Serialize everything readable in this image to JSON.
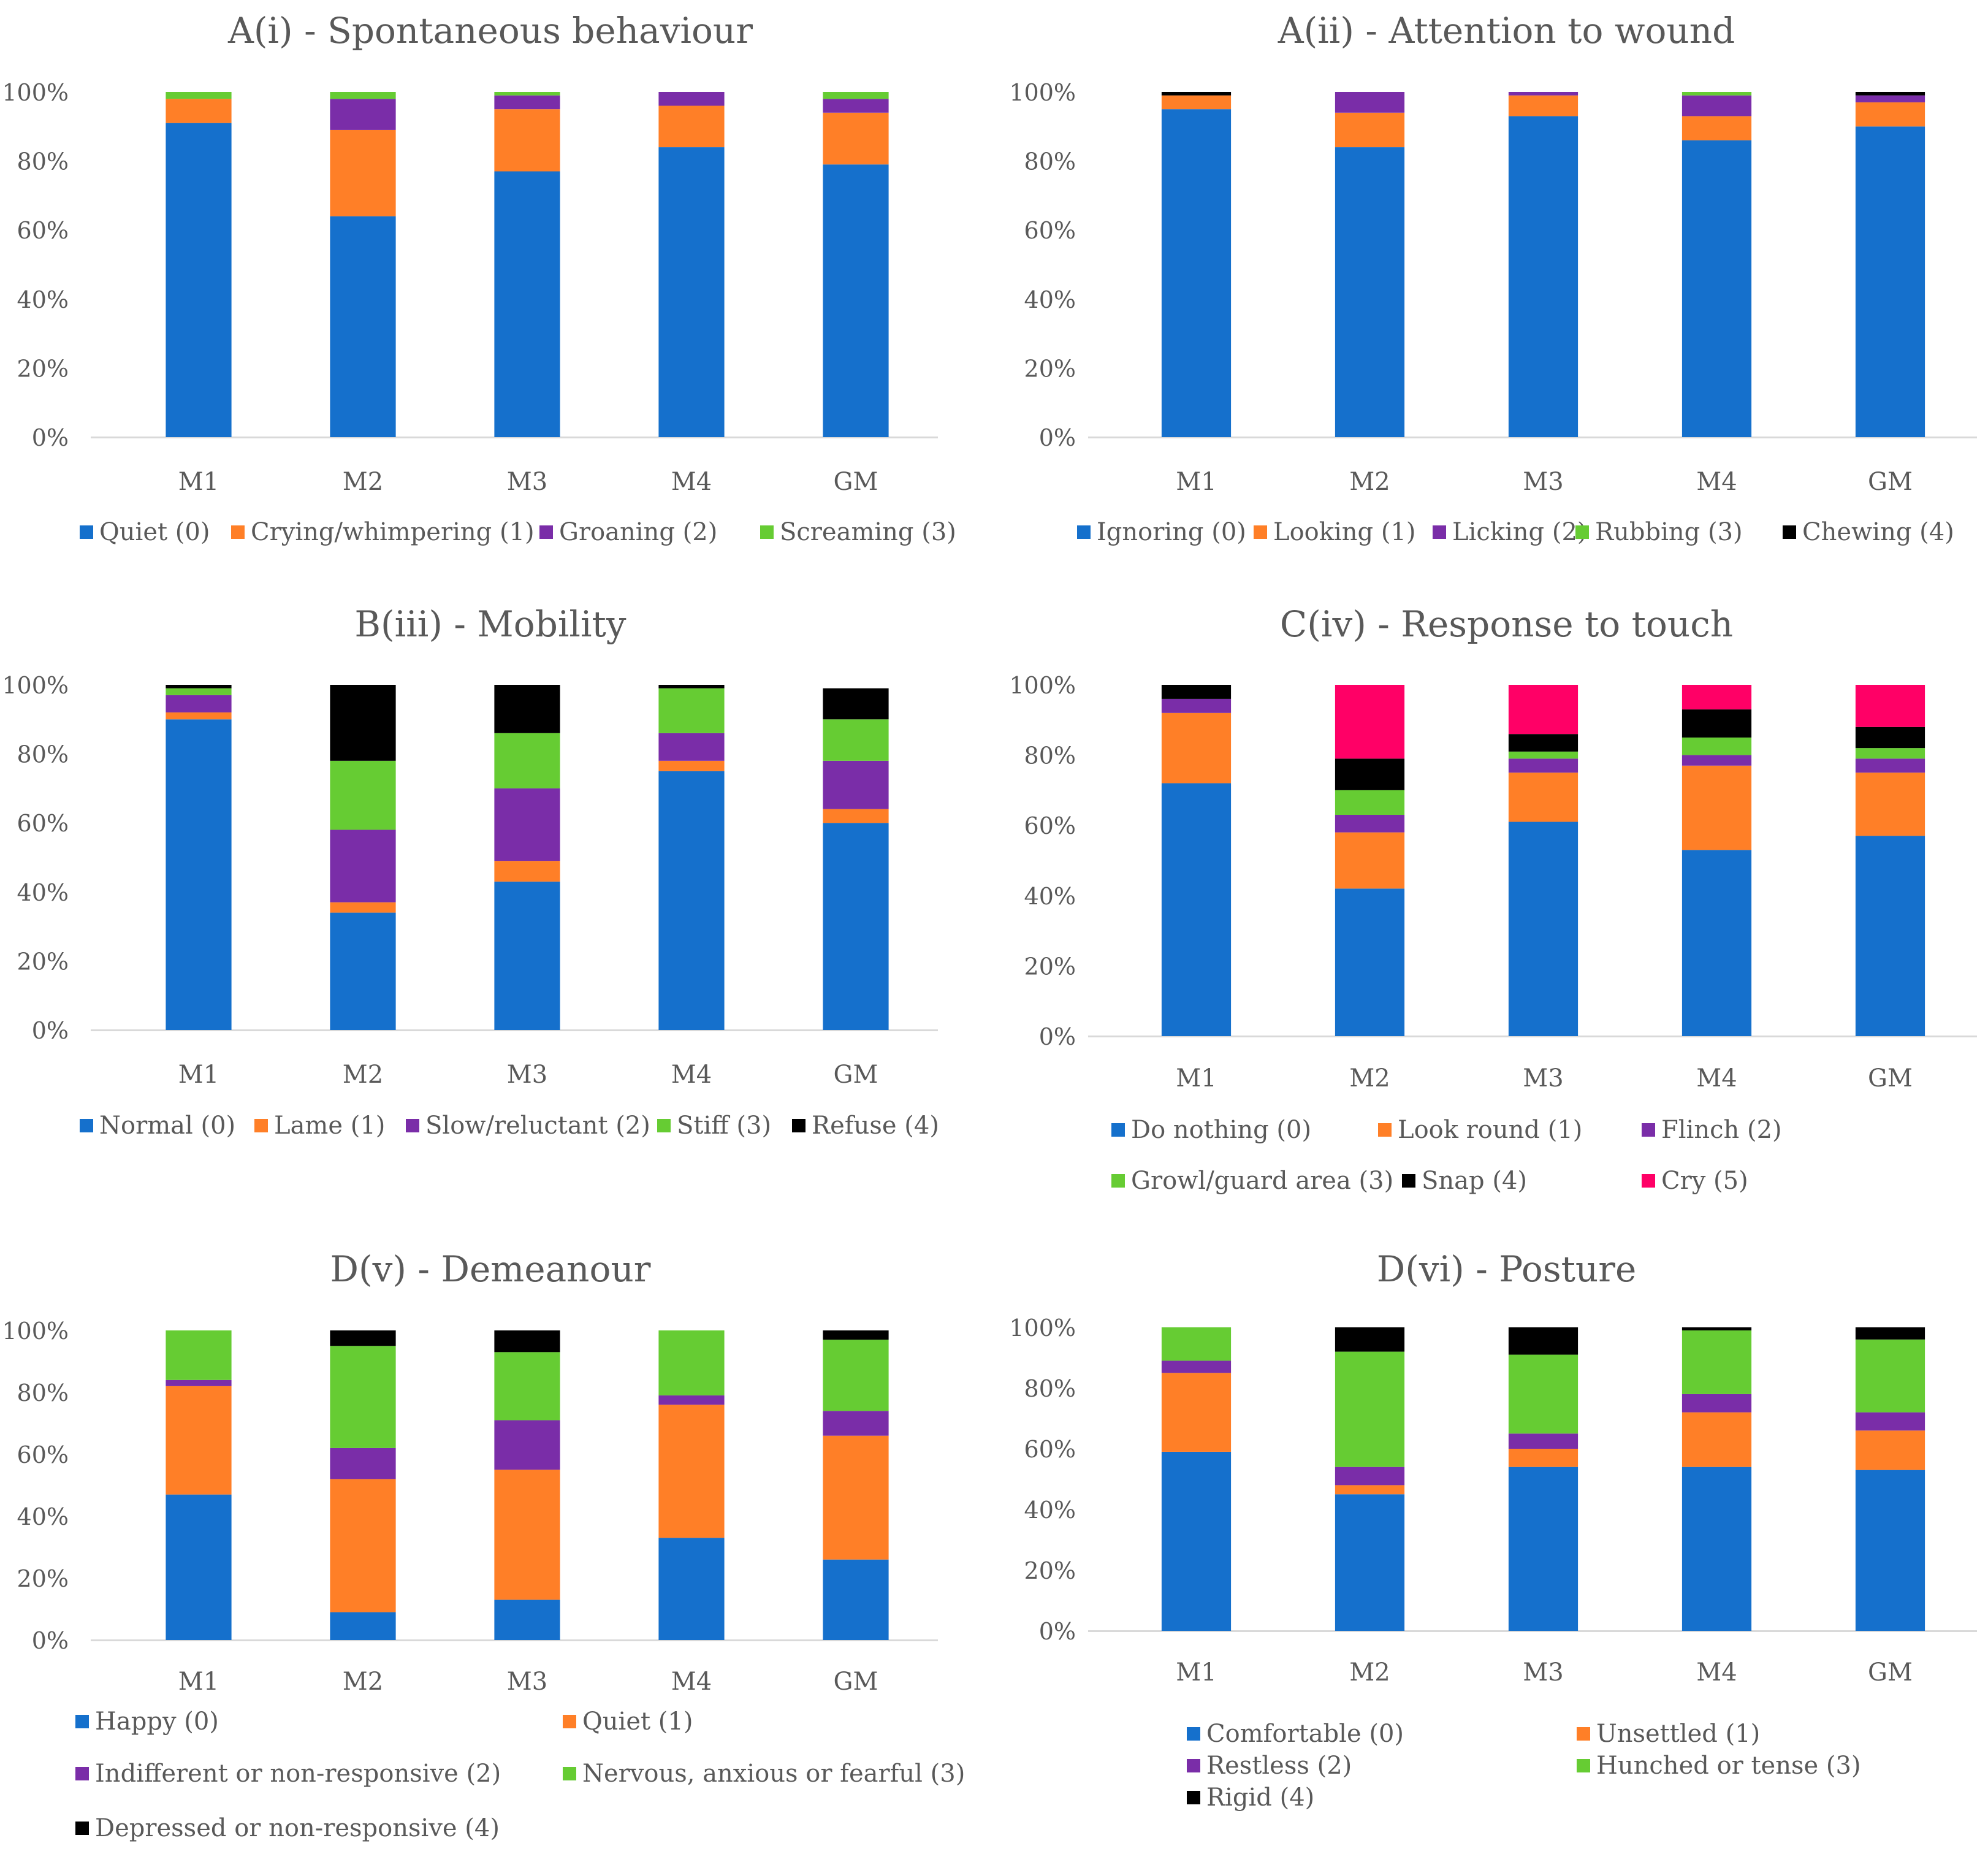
{
  "chart_data": [
    {
      "type": "bar",
      "stacked": true,
      "title": "A(i) - Spontaneous behaviour",
      "categories": [
        "M1",
        "M2",
        "M3",
        "M4",
        "GM"
      ],
      "yticks": [
        "0%",
        "20%",
        "40%",
        "60%",
        "80%",
        "100%"
      ],
      "ylim": [
        0,
        100
      ],
      "grid": false,
      "legend_position": "bottom",
      "series": [
        {
          "name": "Quiet (0)",
          "color": "#1570CC",
          "values": [
            91,
            64,
            77,
            84,
            79
          ]
        },
        {
          "name": "Crying/whimpering (1)",
          "color": "#FF7F27",
          "values": [
            7,
            25,
            18,
            12,
            15
          ]
        },
        {
          "name": "Groaning (2)",
          "color": "#7A2DA8",
          "values": [
            0,
            9,
            4,
            4,
            4
          ]
        },
        {
          "name": "Screaming (3)",
          "color": "#66CC33",
          "values": [
            2,
            2,
            1,
            0,
            2
          ]
        }
      ]
    },
    {
      "type": "bar",
      "stacked": true,
      "title": "A(ii) - Attention to wound",
      "categories": [
        "M1",
        "M2",
        "M3",
        "M4",
        "GM"
      ],
      "yticks": [
        "0%",
        "20%",
        "40%",
        "60%",
        "80%",
        "100%"
      ],
      "ylim": [
        0,
        100
      ],
      "grid": false,
      "legend_position": "bottom",
      "series": [
        {
          "name": "Ignoring (0)",
          "color": "#1570CC",
          "values": [
            95,
            84,
            93,
            86,
            90
          ]
        },
        {
          "name": "Looking (1)",
          "color": "#FF7F27",
          "values": [
            4,
            10,
            6,
            7,
            7
          ]
        },
        {
          "name": "Licking (2)",
          "color": "#7A2DA8",
          "values": [
            0,
            6,
            1,
            6,
            2
          ]
        },
        {
          "name": "Rubbing (3)",
          "color": "#66CC33",
          "values": [
            0,
            0,
            0,
            1,
            0
          ]
        },
        {
          "name": "Chewing (4)",
          "color": "#000000",
          "values": [
            1,
            0,
            0,
            0,
            1
          ]
        }
      ]
    },
    {
      "type": "bar",
      "stacked": true,
      "title": "B(iii) - Mobility",
      "categories": [
        "M1",
        "M2",
        "M3",
        "M4",
        "GM"
      ],
      "yticks": [
        "0%",
        "20%",
        "40%",
        "60%",
        "80%",
        "100%"
      ],
      "ylim": [
        0,
        100
      ],
      "grid": false,
      "legend_position": "bottom",
      "series": [
        {
          "name": "Normal (0)",
          "color": "#1570CC",
          "values": [
            90,
            34,
            43,
            75,
            60
          ]
        },
        {
          "name": "Lame (1)",
          "color": "#FF7F27",
          "values": [
            2,
            3,
            6,
            3,
            4
          ]
        },
        {
          "name": "Slow/reluctant (2)",
          "color": "#7A2DA8",
          "values": [
            5,
            21,
            21,
            8,
            14
          ]
        },
        {
          "name": "Stiff (3)",
          "color": "#66CC33",
          "values": [
            2,
            20,
            16,
            13,
            12
          ]
        },
        {
          "name": "Refuse (4)",
          "color": "#000000",
          "values": [
            1,
            22,
            14,
            1,
            9
          ]
        }
      ]
    },
    {
      "type": "bar",
      "stacked": true,
      "title": "C(iv) - Response to touch",
      "categories": [
        "M1",
        "M2",
        "M3",
        "M4",
        "GM"
      ],
      "yticks": [
        "0%",
        "20%",
        "40%",
        "60%",
        "80%",
        "100%"
      ],
      "ylim": [
        0,
        100
      ],
      "grid": false,
      "legend_position": "bottom",
      "series": [
        {
          "name": "Do nothing (0)",
          "color": "#1570CC",
          "values": [
            72,
            42,
            61,
            53,
            57
          ]
        },
        {
          "name": "Look round (1)",
          "color": "#FF7F27",
          "values": [
            20,
            16,
            14,
            24,
            18
          ]
        },
        {
          "name": "Flinch (2)",
          "color": "#7A2DA8",
          "values": [
            4,
            5,
            4,
            3,
            4
          ]
        },
        {
          "name": "Growl/guard area (3)",
          "color": "#66CC33",
          "values": [
            0,
            7,
            2,
            5,
            3
          ]
        },
        {
          "name": "Snap (4)",
          "color": "#000000",
          "values": [
            4,
            9,
            5,
            8,
            6
          ]
        },
        {
          "name": "Cry (5)",
          "color": "#FF0066",
          "values": [
            0,
            21,
            14,
            7,
            12
          ]
        }
      ]
    },
    {
      "type": "bar",
      "stacked": true,
      "title": "D(v) - Demeanour",
      "categories": [
        "M1",
        "M2",
        "M3",
        "M4",
        "GM"
      ],
      "yticks": [
        "0%",
        "20%",
        "40%",
        "60%",
        "80%",
        "100%"
      ],
      "ylim": [
        0,
        100
      ],
      "grid": false,
      "legend_position": "bottom",
      "series": [
        {
          "name": "Happy (0)",
          "color": "#1570CC",
          "values": [
            47,
            9,
            13,
            33,
            26
          ]
        },
        {
          "name": "Quiet (1)",
          "color": "#FF7F27",
          "values": [
            35,
            43,
            42,
            43,
            40
          ]
        },
        {
          "name": "Indifferent or non-responsive (2)",
          "color": "#7A2DA8",
          "values": [
            2,
            10,
            16,
            3,
            8
          ]
        },
        {
          "name": "Nervous, anxious or fearful (3)",
          "color": "#66CC33",
          "values": [
            16,
            33,
            22,
            21,
            23
          ]
        },
        {
          "name": "Depressed or non-responsive (4)",
          "color": "#000000",
          "values": [
            0,
            5,
            7,
            0,
            3
          ]
        }
      ]
    },
    {
      "type": "bar",
      "stacked": true,
      "title": "D(vi) - Posture",
      "categories": [
        "M1",
        "M2",
        "M3",
        "M4",
        "GM"
      ],
      "yticks": [
        "0%",
        "20%",
        "40%",
        "60%",
        "80%",
        "100%"
      ],
      "ylim": [
        0,
        100
      ],
      "grid": false,
      "legend_position": "bottom",
      "series": [
        {
          "name": "Comfortable (0)",
          "color": "#1570CC",
          "values": [
            59,
            45,
            54,
            54,
            53
          ]
        },
        {
          "name": "Unsettled (1)",
          "color": "#FF7F27",
          "values": [
            26,
            3,
            6,
            18,
            13
          ]
        },
        {
          "name": "Restless (2)",
          "color": "#7A2DA8",
          "values": [
            4,
            6,
            5,
            6,
            6
          ]
        },
        {
          "name": "Hunched or tense (3)",
          "color": "#66CC33",
          "values": [
            11,
            38,
            26,
            21,
            24
          ]
        },
        {
          "name": "Rigid (4)",
          "color": "#000000",
          "values": [
            0,
            8,
            9,
            1,
            4
          ]
        }
      ]
    }
  ]
}
